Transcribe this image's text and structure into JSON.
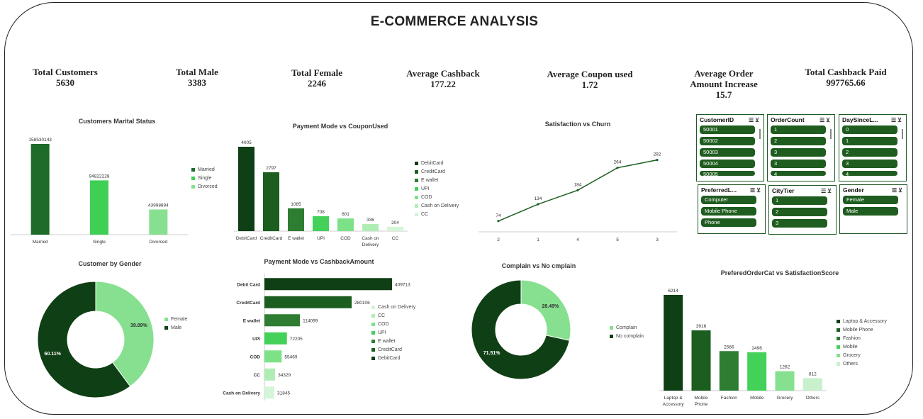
{
  "title": "E-COMMERCE ANALYSIS",
  "kpis": [
    {
      "label": "Total Customers",
      "value": "5630"
    },
    {
      "label": "Total Male",
      "value": "3383"
    },
    {
      "label": "Total Female",
      "value": "2246"
    },
    {
      "label": "Average Cashback",
      "value": "177.22"
    },
    {
      "label": "Average Coupon used",
      "value": "1.72"
    },
    {
      "label": "Average Order Amount Increase",
      "value": "15.7"
    },
    {
      "label": "Total Cashback Paid",
      "value": "997765.66"
    }
  ],
  "chart_data": [
    {
      "type": "bar",
      "title": "Customers Marital Status",
      "categories": [
        "Married",
        "Single",
        "Divorced"
      ],
      "values": [
        158530143,
        94822228,
        43998894
      ],
      "data_labels": [
        "158530143",
        "94822228",
        "43998894"
      ],
      "colors": [
        "#1e6b2a",
        "#3fcf55",
        "#87e08f"
      ],
      "legend": [
        "Married",
        "Single",
        "Divorced"
      ],
      "legend_position": "right",
      "grid": false
    },
    {
      "type": "bar",
      "title": "Payment Mode vs CouponUsed",
      "categories": [
        "DebitCard",
        "CreditCard",
        "E wallet",
        "UPI",
        "COD",
        "Cash on Delivery",
        "CC"
      ],
      "values": [
        4005,
        2797,
        1085,
        708,
        601,
        336,
        204
      ],
      "data_labels": [
        "4005",
        "2797",
        "1085",
        "708",
        "601",
        "336",
        "204"
      ],
      "colors": [
        "#0f3f14",
        "#1b5e20",
        "#2e7d32",
        "#43d15a",
        "#7de287",
        "#b0edb5",
        "#d4f5d7"
      ],
      "legend": [
        "DebitCard",
        "CreditCard",
        "E wallet",
        "UPI",
        "COD",
        "Cash on Delivery",
        "CC"
      ],
      "legend_position": "right",
      "grid": false
    },
    {
      "type": "line",
      "title": "Satisfaction vs Churn",
      "categories": [
        "2",
        "1",
        "4",
        "5",
        "3"
      ],
      "values": [
        74,
        134,
        184,
        264,
        292
      ],
      "data_labels": [
        "74",
        "134",
        "184",
        "264",
        "292"
      ],
      "colors": [
        "#1b5e20"
      ],
      "grid": false
    },
    {
      "type": "pie",
      "title": "Customer by Gender",
      "categories": [
        "Female",
        "Male"
      ],
      "values": [
        39.89,
        60.11
      ],
      "data_labels": [
        "39.89%",
        "60.11%"
      ],
      "colors": [
        "#86e08f",
        "#0f3f14"
      ],
      "legend": [
        "Female",
        "Male"
      ],
      "legend_position": "right"
    },
    {
      "type": "bar",
      "orientation": "horizontal",
      "title": "Payment Mode vs CashbackAmount",
      "categories": [
        "Debit Card",
        "CreditCard",
        "E wallet",
        "UPI",
        "COD",
        "CC",
        "Cash on Delivery"
      ],
      "values": [
        409713,
        280106,
        114099,
        72205,
        55469,
        34329,
        31845
      ],
      "data_labels": [
        "409713",
        "280106",
        "114099",
        "72205",
        "55469",
        "34329",
        "31845"
      ],
      "colors": [
        "#0f3f14",
        "#1b5e20",
        "#2e7d32",
        "#43d15a",
        "#7de287",
        "#b0edb5",
        "#d4f5d7"
      ],
      "legend": [
        "Cash on Delivery",
        "CC",
        "COD",
        "UPI",
        "E wallet",
        "CreditCard",
        "DebitCard"
      ],
      "legend_colors": [
        "#d4f5d7",
        "#b0edb5",
        "#7de287",
        "#43d15a",
        "#2e7d32",
        "#1b5e20",
        "#0f3f14"
      ],
      "legend_position": "right",
      "grid": false
    },
    {
      "type": "pie",
      "title": "Complain vs No cmplain",
      "categories": [
        "Complain",
        "No complain"
      ],
      "values": [
        28.49,
        71.51
      ],
      "data_labels": [
        "28.49%",
        "71.51%"
      ],
      "colors": [
        "#86e08f",
        "#0f3f14"
      ],
      "legend": [
        "Complain",
        "No complain"
      ],
      "legend_position": "right"
    },
    {
      "type": "bar",
      "title": "PreferedOrderCat vs SatisfactionScore",
      "categories": [
        "Laptop & Accessory",
        "Mobile Phone",
        "Fashion",
        "Mobile",
        "Grocery",
        "Others"
      ],
      "values": [
        6214,
        3916,
        2566,
        2496,
        1262,
        812
      ],
      "data_labels": [
        "6214",
        "3916",
        "2566",
        "2496",
        "1262",
        "812"
      ],
      "colors": [
        "#0f3f14",
        "#1b5e20",
        "#2e7d32",
        "#43d15a",
        "#86e08f",
        "#c8f0cc"
      ],
      "legend": [
        "Laptop & Accessory",
        "Mobile Phone",
        "Fashion",
        "Mobile",
        "Grocery",
        "Others"
      ],
      "legend_position": "right",
      "grid": false
    }
  ],
  "slicers": [
    {
      "title": "CustomerID",
      "items": [
        "50001",
        "50002",
        "50003",
        "50004",
        "50005"
      ]
    },
    {
      "title": "OrderCount",
      "items": [
        "1",
        "2",
        "3",
        "3",
        "4"
      ]
    },
    {
      "title": "DaySinceL...",
      "items": [
        "0",
        "1",
        "2",
        "3",
        "4"
      ]
    },
    {
      "title": "PreferredL...",
      "items": [
        "Computer",
        "Mobile Phone",
        "Phone"
      ]
    },
    {
      "title": "CityTier",
      "items": [
        "1",
        "2",
        "3"
      ]
    },
    {
      "title": "Gender",
      "items": [
        "Female",
        "Male"
      ]
    }
  ]
}
